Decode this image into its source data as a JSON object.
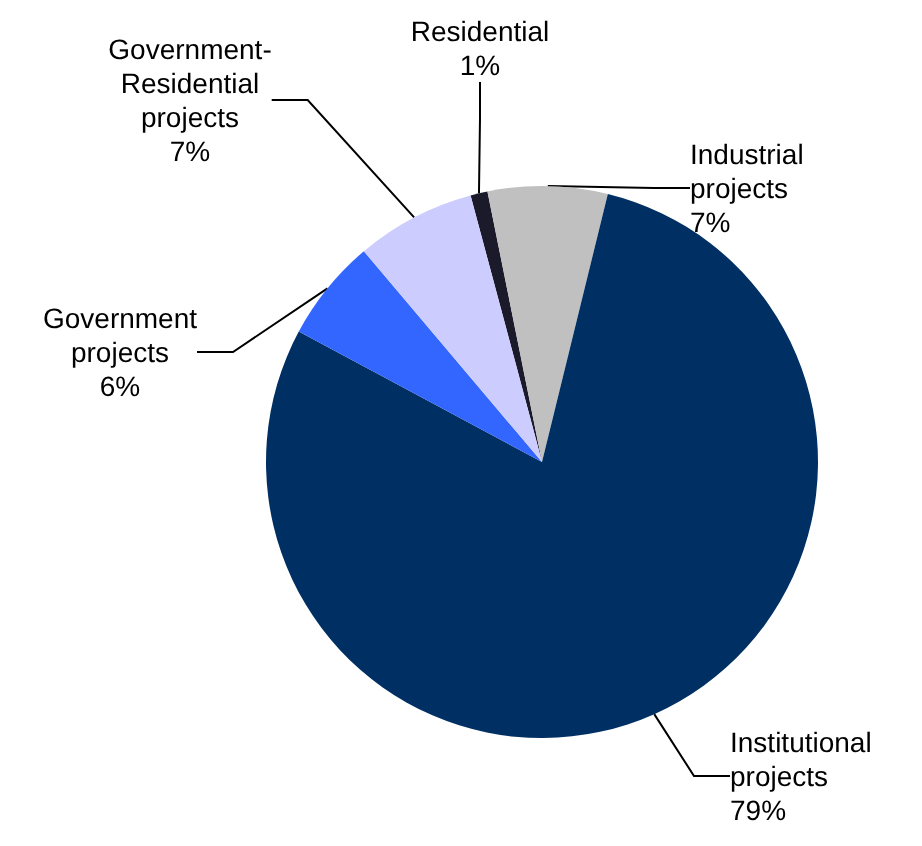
{
  "chart_data": {
    "type": "pie",
    "categories": [
      "Residential",
      "Industrial projects",
      "Institutional projects",
      "Government projects",
      "Government-Residential projects"
    ],
    "values": [
      1,
      7,
      79,
      6,
      7
    ],
    "value_labels": [
      "1%",
      "7%",
      "79%",
      "6%",
      "7%"
    ],
    "colors": [
      "#1a1a2a",
      "#c0c0c0",
      "#003063",
      "#3366ff",
      "#ccccff"
    ],
    "legend": false
  }
}
